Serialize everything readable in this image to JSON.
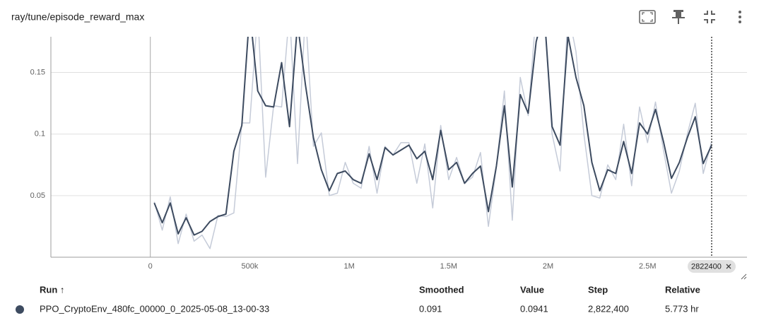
{
  "header": {
    "title": "ray/tune/episode_reward_max"
  },
  "chart_data": {
    "type": "line",
    "x": [
      20000,
      60000,
      100000,
      140000,
      180000,
      220000,
      260000,
      300000,
      340000,
      380000,
      420000,
      460000,
      500000,
      540000,
      580000,
      620000,
      660000,
      700000,
      740000,
      780000,
      820000,
      860000,
      900000,
      940000,
      980000,
      1020000,
      1060000,
      1100000,
      1140000,
      1180000,
      1220000,
      1260000,
      1300000,
      1340000,
      1380000,
      1420000,
      1460000,
      1500000,
      1540000,
      1580000,
      1620000,
      1660000,
      1700000,
      1740000,
      1780000,
      1820000,
      1860000,
      1900000,
      1940000,
      1980000,
      2020000,
      2060000,
      2100000,
      2140000,
      2180000,
      2220000,
      2260000,
      2300000,
      2340000,
      2380000,
      2420000,
      2460000,
      2500000,
      2540000,
      2580000,
      2620000,
      2660000,
      2700000,
      2740000,
      2780000,
      2822400
    ],
    "series": [
      {
        "color": "#c5cbd8",
        "values": [
          0.045,
          0.022,
          0.049,
          0.011,
          0.035,
          0.013,
          0.018,
          0.007,
          0.034,
          0.033,
          0.036,
          0.109,
          0.109,
          0.2,
          0.065,
          0.123,
          0.122,
          0.2,
          0.076,
          0.2,
          0.09,
          0.101,
          0.05,
          0.052,
          0.077,
          0.06,
          0.056,
          0.09,
          0.052,
          0.09,
          0.083,
          0.093,
          0.093,
          0.06,
          0.092,
          0.04,
          0.107,
          0.063,
          0.081,
          0.06,
          0.065,
          0.085,
          0.025,
          0.073,
          0.135,
          0.03,
          0.146,
          0.115,
          0.2,
          0.2,
          0.1,
          0.07,
          0.2,
          0.167,
          0.1,
          0.05,
          0.048,
          0.075,
          0.063,
          0.108,
          0.058,
          0.122,
          0.093,
          0.126,
          0.087,
          0.052,
          0.07,
          0.1,
          0.125,
          0.068,
          0.0941
        ]
      },
      {
        "color": "#3d4b60",
        "values": [
          0.044,
          0.028,
          0.044,
          0.019,
          0.032,
          0.018,
          0.021,
          0.029,
          0.033,
          0.035,
          0.086,
          0.107,
          0.2,
          0.135,
          0.123,
          0.122,
          0.158,
          0.106,
          0.19,
          0.14,
          0.097,
          0.071,
          0.054,
          0.068,
          0.07,
          0.063,
          0.06,
          0.084,
          0.063,
          0.089,
          0.083,
          0.087,
          0.091,
          0.08,
          0.086,
          0.063,
          0.103,
          0.071,
          0.077,
          0.06,
          0.068,
          0.074,
          0.037,
          0.074,
          0.123,
          0.057,
          0.132,
          0.117,
          0.175,
          0.2,
          0.106,
          0.091,
          0.18,
          0.146,
          0.123,
          0.077,
          0.054,
          0.071,
          0.068,
          0.094,
          0.068,
          0.109,
          0.1,
          0.12,
          0.094,
          0.064,
          0.077,
          0.097,
          0.114,
          0.076,
          0.091
        ]
      }
    ],
    "xlim": [
      -500000,
      3000000
    ],
    "xticks": [
      0,
      {
        "value": 500000,
        "label": "500k"
      },
      {
        "value": 1000000,
        "label": "1M"
      },
      {
        "value": 1500000,
        "label": "1.5M"
      },
      {
        "value": 2000000,
        "label": "2M"
      },
      {
        "value": 2500000,
        "label": "2.5M"
      }
    ],
    "ylim": [
      0,
      0.179
    ],
    "yticks": [
      0.05,
      0.1,
      0.15
    ],
    "grid": true,
    "cursor_step": 2822400
  },
  "table": {
    "columns": [
      "Run ↑",
      "Smoothed",
      "Value",
      "Step",
      "Relative"
    ],
    "rows": [
      [
        "PPO_CryptoEnv_480fc_00000_0_2025-05-08_13-00-33",
        "0.091",
        "0.0941",
        "2,822,400",
        "5.773 hr"
      ]
    ]
  }
}
